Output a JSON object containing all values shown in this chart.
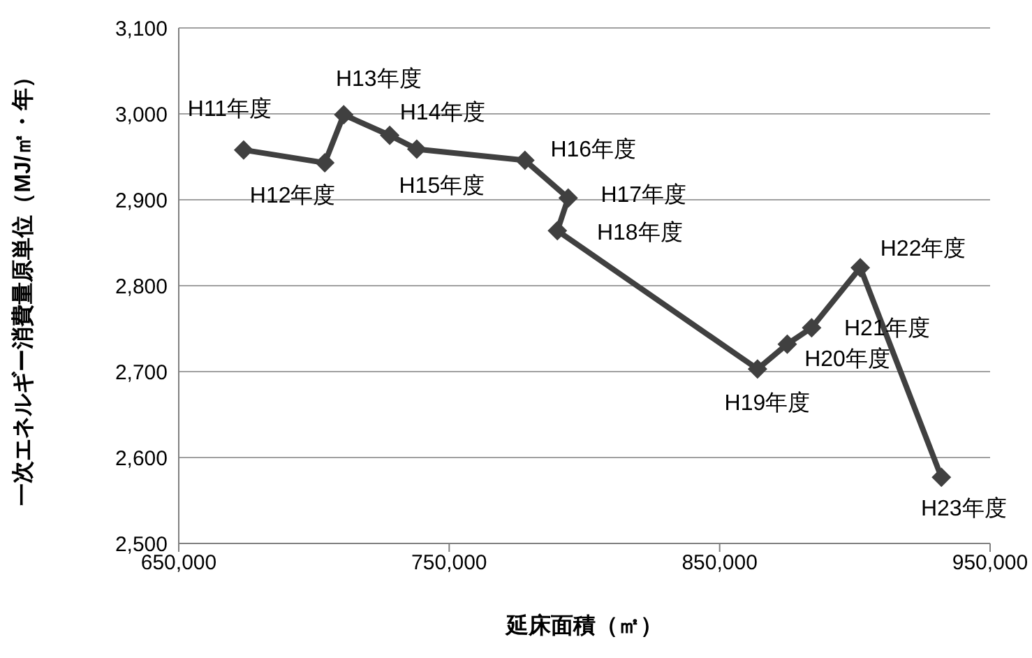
{
  "chart_data": {
    "type": "line",
    "xlabel": "延床面積（㎡）",
    "ylabel": "一次エネルギー消費量原単位（MJ/㎡・年）",
    "x": [
      674000,
      704000,
      711000,
      728000,
      738000,
      778000,
      794000,
      790000,
      864000,
      875000,
      884000,
      902000,
      932000
    ],
    "series": [
      {
        "color": "#404040",
        "values": [
          2958,
          2943,
          2999,
          2975,
          2959,
          2946,
          2902,
          2864,
          2703,
          2732,
          2751,
          2821,
          2577
        ]
      }
    ],
    "xlim": [
      650000,
      950000
    ],
    "xticks": [
      {
        "value": 650000,
        "label": "650,000"
      },
      {
        "value": 750000,
        "label": "750,000"
      },
      {
        "value": 850000,
        "label": "850,000"
      },
      {
        "value": 950000,
        "label": "950,000"
      }
    ],
    "ylim": [
      2500,
      3100
    ],
    "yticks": [
      {
        "value": 2500,
        "label": "2,500"
      },
      {
        "value": 2600,
        "label": "2,600"
      },
      {
        "value": 2700,
        "label": "2,700"
      },
      {
        "value": 2800,
        "label": "2,800"
      },
      {
        "value": 2900,
        "label": "2,900"
      },
      {
        "value": 3000,
        "label": "3,000"
      },
      {
        "value": 3100,
        "label": "3,100"
      }
    ],
    "grid": "y",
    "marker": "diamond",
    "line_style": "solid",
    "legend": false,
    "annotations": [
      {
        "text": "H11年度",
        "x": 674000,
        "y": 2958
      },
      {
        "text": "H12年度",
        "x": 704000,
        "y": 2943
      },
      {
        "text": "H13年度",
        "x": 711000,
        "y": 2999
      },
      {
        "text": "H14年度",
        "x": 728000,
        "y": 2975
      },
      {
        "text": "H15年度",
        "x": 738000,
        "y": 2959
      },
      {
        "text": "H16年度",
        "x": 778000,
        "y": 2946
      },
      {
        "text": "H17年度",
        "x": 794000,
        "y": 2902
      },
      {
        "text": "H18年度",
        "x": 790000,
        "y": 2864
      },
      {
        "text": "H19年度",
        "x": 864000,
        "y": 2703
      },
      {
        "text": "H20年度",
        "x": 875000,
        "y": 2732
      },
      {
        "text": "H21年度",
        "x": 884000,
        "y": 2751
      },
      {
        "text": "H22年度",
        "x": 902000,
        "y": 2821
      },
      {
        "text": "H23年度",
        "x": 932000,
        "y": 2577
      }
    ]
  }
}
